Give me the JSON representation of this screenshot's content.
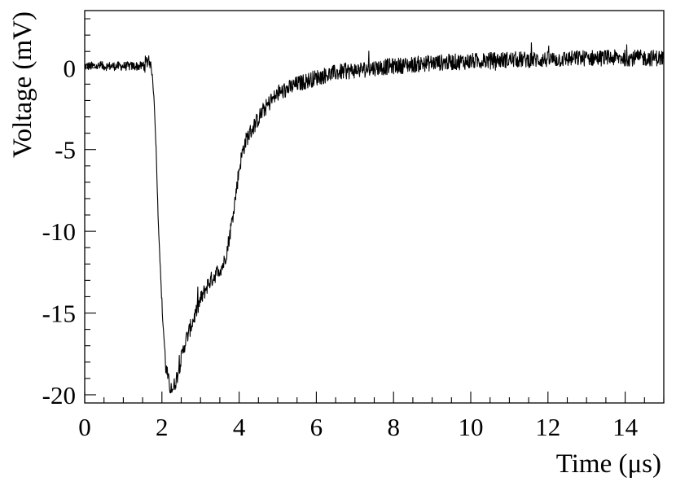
{
  "chart_data": {
    "type": "line",
    "title": "",
    "xlabel": "Time (μs)",
    "ylabel": "Voltage (mV)",
    "xlim": [
      0,
      15
    ],
    "ylim": [
      -20.5,
      3.5
    ],
    "x_ticks": [
      0,
      2,
      4,
      6,
      8,
      10,
      12,
      14
    ],
    "x_tick_labels": [
      "0",
      "2",
      "4",
      "6",
      "8",
      "10",
      "12",
      "14"
    ],
    "y_ticks": [
      0,
      -5,
      -10,
      -15,
      -20
    ],
    "y_tick_labels": [
      "0",
      "-5",
      "-10",
      "-15",
      "-20"
    ],
    "grid": false,
    "legend": false,
    "line_color": "#000000",
    "series": [
      {
        "x": [
          0,
          1.5,
          1.6,
          1.65,
          1.7,
          1.75,
          1.8,
          1.85,
          1.9,
          2.0,
          2.1,
          2.2,
          2.3,
          2.4,
          2.5,
          2.6,
          2.8,
          3.0,
          3.2,
          3.4,
          3.6,
          3.7,
          3.8,
          3.9,
          4.0,
          4.1,
          4.2,
          4.4,
          4.6,
          4.8,
          5.0,
          5.5,
          6.0,
          6.5,
          7.0,
          7.5,
          8.0,
          8.5,
          9.0,
          10.0,
          11.0,
          12.0,
          13.0,
          14.0,
          15.0
        ],
        "y": [
          0.1,
          0.1,
          0.3,
          0.6,
          0.4,
          -0.5,
          -2.0,
          -5.0,
          -9.0,
          -14.5,
          -18.3,
          -19.5,
          -19.6,
          -18.8,
          -17.8,
          -16.8,
          -15.5,
          -14.2,
          -13.2,
          -12.6,
          -12.0,
          -11.0,
          -9.6,
          -8.0,
          -6.2,
          -5.0,
          -4.3,
          -3.5,
          -2.7,
          -2.1,
          -1.6,
          -1.0,
          -0.6,
          -0.3,
          -0.15,
          0.0,
          0.1,
          0.2,
          0.3,
          0.4,
          0.5,
          0.5,
          0.6,
          0.6,
          0.6
        ],
        "noise_mV": 0.5
      }
    ]
  }
}
